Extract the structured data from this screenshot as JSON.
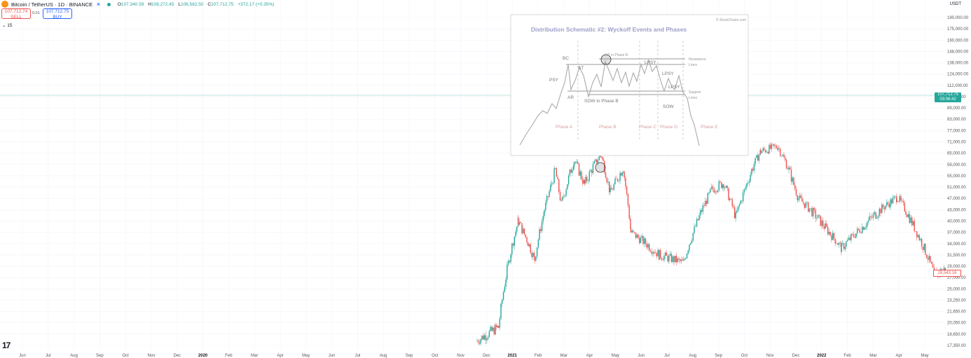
{
  "header": {
    "symbol": "Bitcoin / TetherUS · 1D · BINANCE",
    "halt_icon": "ж",
    "open_label": "O",
    "open": "107,340.59",
    "high_label": "H",
    "high": "108,272.45",
    "low_label": "L",
    "low": "106,562.50",
    "close_label": "C",
    "close": "107,712.75",
    "change": "+372.17 (+0.35%)"
  },
  "trade": {
    "sell_price": "107,712.74",
    "sell_label": "SELL",
    "spread": "0.01",
    "buy_price": "107,712.75",
    "buy_label": "BUY"
  },
  "indicator_toggle": "15",
  "currency": "USDT",
  "price_scale": [
    "190,000.00",
    "175,000.00",
    "160,000.00",
    "148,000.00",
    "136,000.00",
    "124,000.00",
    "112,000.00",
    "96,500.00",
    "89,000.00",
    "83,000.00",
    "77,000.00",
    "71,000.00",
    "65,000.00",
    "59,000.00",
    "55,000.00",
    "51,000.00",
    "47,000.00",
    "43,000.00",
    "40,000.00",
    "37,000.00",
    "34,000.00",
    "31,500.00",
    "29,000.00",
    "27,000.00",
    "25,000.00",
    "23,250.00",
    "21,650.00",
    "20,050.00",
    "18,650.00",
    "17,350.00"
  ],
  "current_price_tag": {
    "price": "107,712.75",
    "countdown": "03:06:42",
    "color": "#26a69a"
  },
  "last_price_tag": {
    "price": "28,543.16",
    "color": "#ef5350"
  },
  "time_axis": [
    {
      "label": "Jun",
      "year": false
    },
    {
      "label": "Jul",
      "year": false
    },
    {
      "label": "Aug",
      "year": false
    },
    {
      "label": "Sep",
      "year": false
    },
    {
      "label": "Oct",
      "year": false
    },
    {
      "label": "Nov",
      "year": false
    },
    {
      "label": "Dec",
      "year": false
    },
    {
      "label": "2020",
      "year": true
    },
    {
      "label": "Feb",
      "year": false
    },
    {
      "label": "Mar",
      "year": false
    },
    {
      "label": "Apr",
      "year": false
    },
    {
      "label": "May",
      "year": false
    },
    {
      "label": "Jun",
      "year": false
    },
    {
      "label": "Jul",
      "year": false
    },
    {
      "label": "Aug",
      "year": false
    },
    {
      "label": "Sep",
      "year": false
    },
    {
      "label": "Oct",
      "year": false
    },
    {
      "label": "Nov",
      "year": false
    },
    {
      "label": "Dec",
      "year": false
    },
    {
      "label": "2021",
      "year": true
    },
    {
      "label": "Feb",
      "year": false
    },
    {
      "label": "Mar",
      "year": false
    },
    {
      "label": "Apr",
      "year": false
    },
    {
      "label": "May",
      "year": false
    },
    {
      "label": "Jun",
      "year": false
    },
    {
      "label": "Jul",
      "year": false
    },
    {
      "label": "Aug",
      "year": false
    },
    {
      "label": "Sep",
      "year": false
    },
    {
      "label": "Oct",
      "year": false
    },
    {
      "label": "Nov",
      "year": false
    },
    {
      "label": "Dec",
      "year": false
    },
    {
      "label": "2022",
      "year": true
    },
    {
      "label": "Feb",
      "year": false
    },
    {
      "label": "Mar",
      "year": false
    },
    {
      "label": "Apr",
      "year": false
    },
    {
      "label": "May",
      "year": false
    }
  ],
  "colors": {
    "up": "#26a69a",
    "down": "#ef5350",
    "grid": "#f0f3fa"
  },
  "inset": {
    "title": "Distribution Schematic #2: Wyckoff Events and Phases",
    "source": "© StockCharts.com",
    "labels": {
      "bc": "BC",
      "psy": "PSY",
      "ar": "AR",
      "st": "ST",
      "utad": "UT in Phase B",
      "lpsy1": "LPSY",
      "lpsy2": "LPSY",
      "lpsy3": "LPSY",
      "sow_b": "SOW in Phase B",
      "sow": "SOW",
      "resistance": "Resistance",
      "resistance2": "Lines",
      "support": "Support",
      "support2": "Lines"
    },
    "phases": [
      "Phase A",
      "Phase B",
      "Phase C",
      "Phase D",
      "Phase E"
    ]
  },
  "chart_data": {
    "type": "candlestick",
    "timeframe": "1D",
    "ylim": [
      17350,
      190000
    ],
    "x_range": [
      "2019-06",
      "2022-05"
    ],
    "series": [
      {
        "name": "BTCUSDT",
        "points": [
          [
            "2020-11-20",
            17900
          ],
          [
            "2020-12-15",
            19500
          ],
          [
            "2021-01-08",
            40000
          ],
          [
            "2021-01-27",
            30500
          ],
          [
            "2021-02-21",
            57000
          ],
          [
            "2021-02-28",
            45000
          ],
          [
            "2021-03-13",
            61000
          ],
          [
            "2021-03-25",
            52000
          ],
          [
            "2021-04-14",
            64000
          ],
          [
            "2021-04-25",
            49000
          ],
          [
            "2021-05-10",
            58000
          ],
          [
            "2021-05-19",
            37000
          ],
          [
            "2021-06-22",
            31500
          ],
          [
            "2021-07-20",
            29800
          ],
          [
            "2021-08-23",
            50000
          ],
          [
            "2021-09-07",
            52500
          ],
          [
            "2021-09-21",
            41000
          ],
          [
            "2021-10-20",
            66000
          ],
          [
            "2021-11-10",
            68500
          ],
          [
            "2021-12-04",
            47000
          ],
          [
            "2022-01-24",
            33000
          ],
          [
            "2022-03-29",
            47500
          ],
          [
            "2022-05-12",
            27500
          ],
          [
            "2022-05-25",
            28543
          ]
        ]
      }
    ]
  }
}
